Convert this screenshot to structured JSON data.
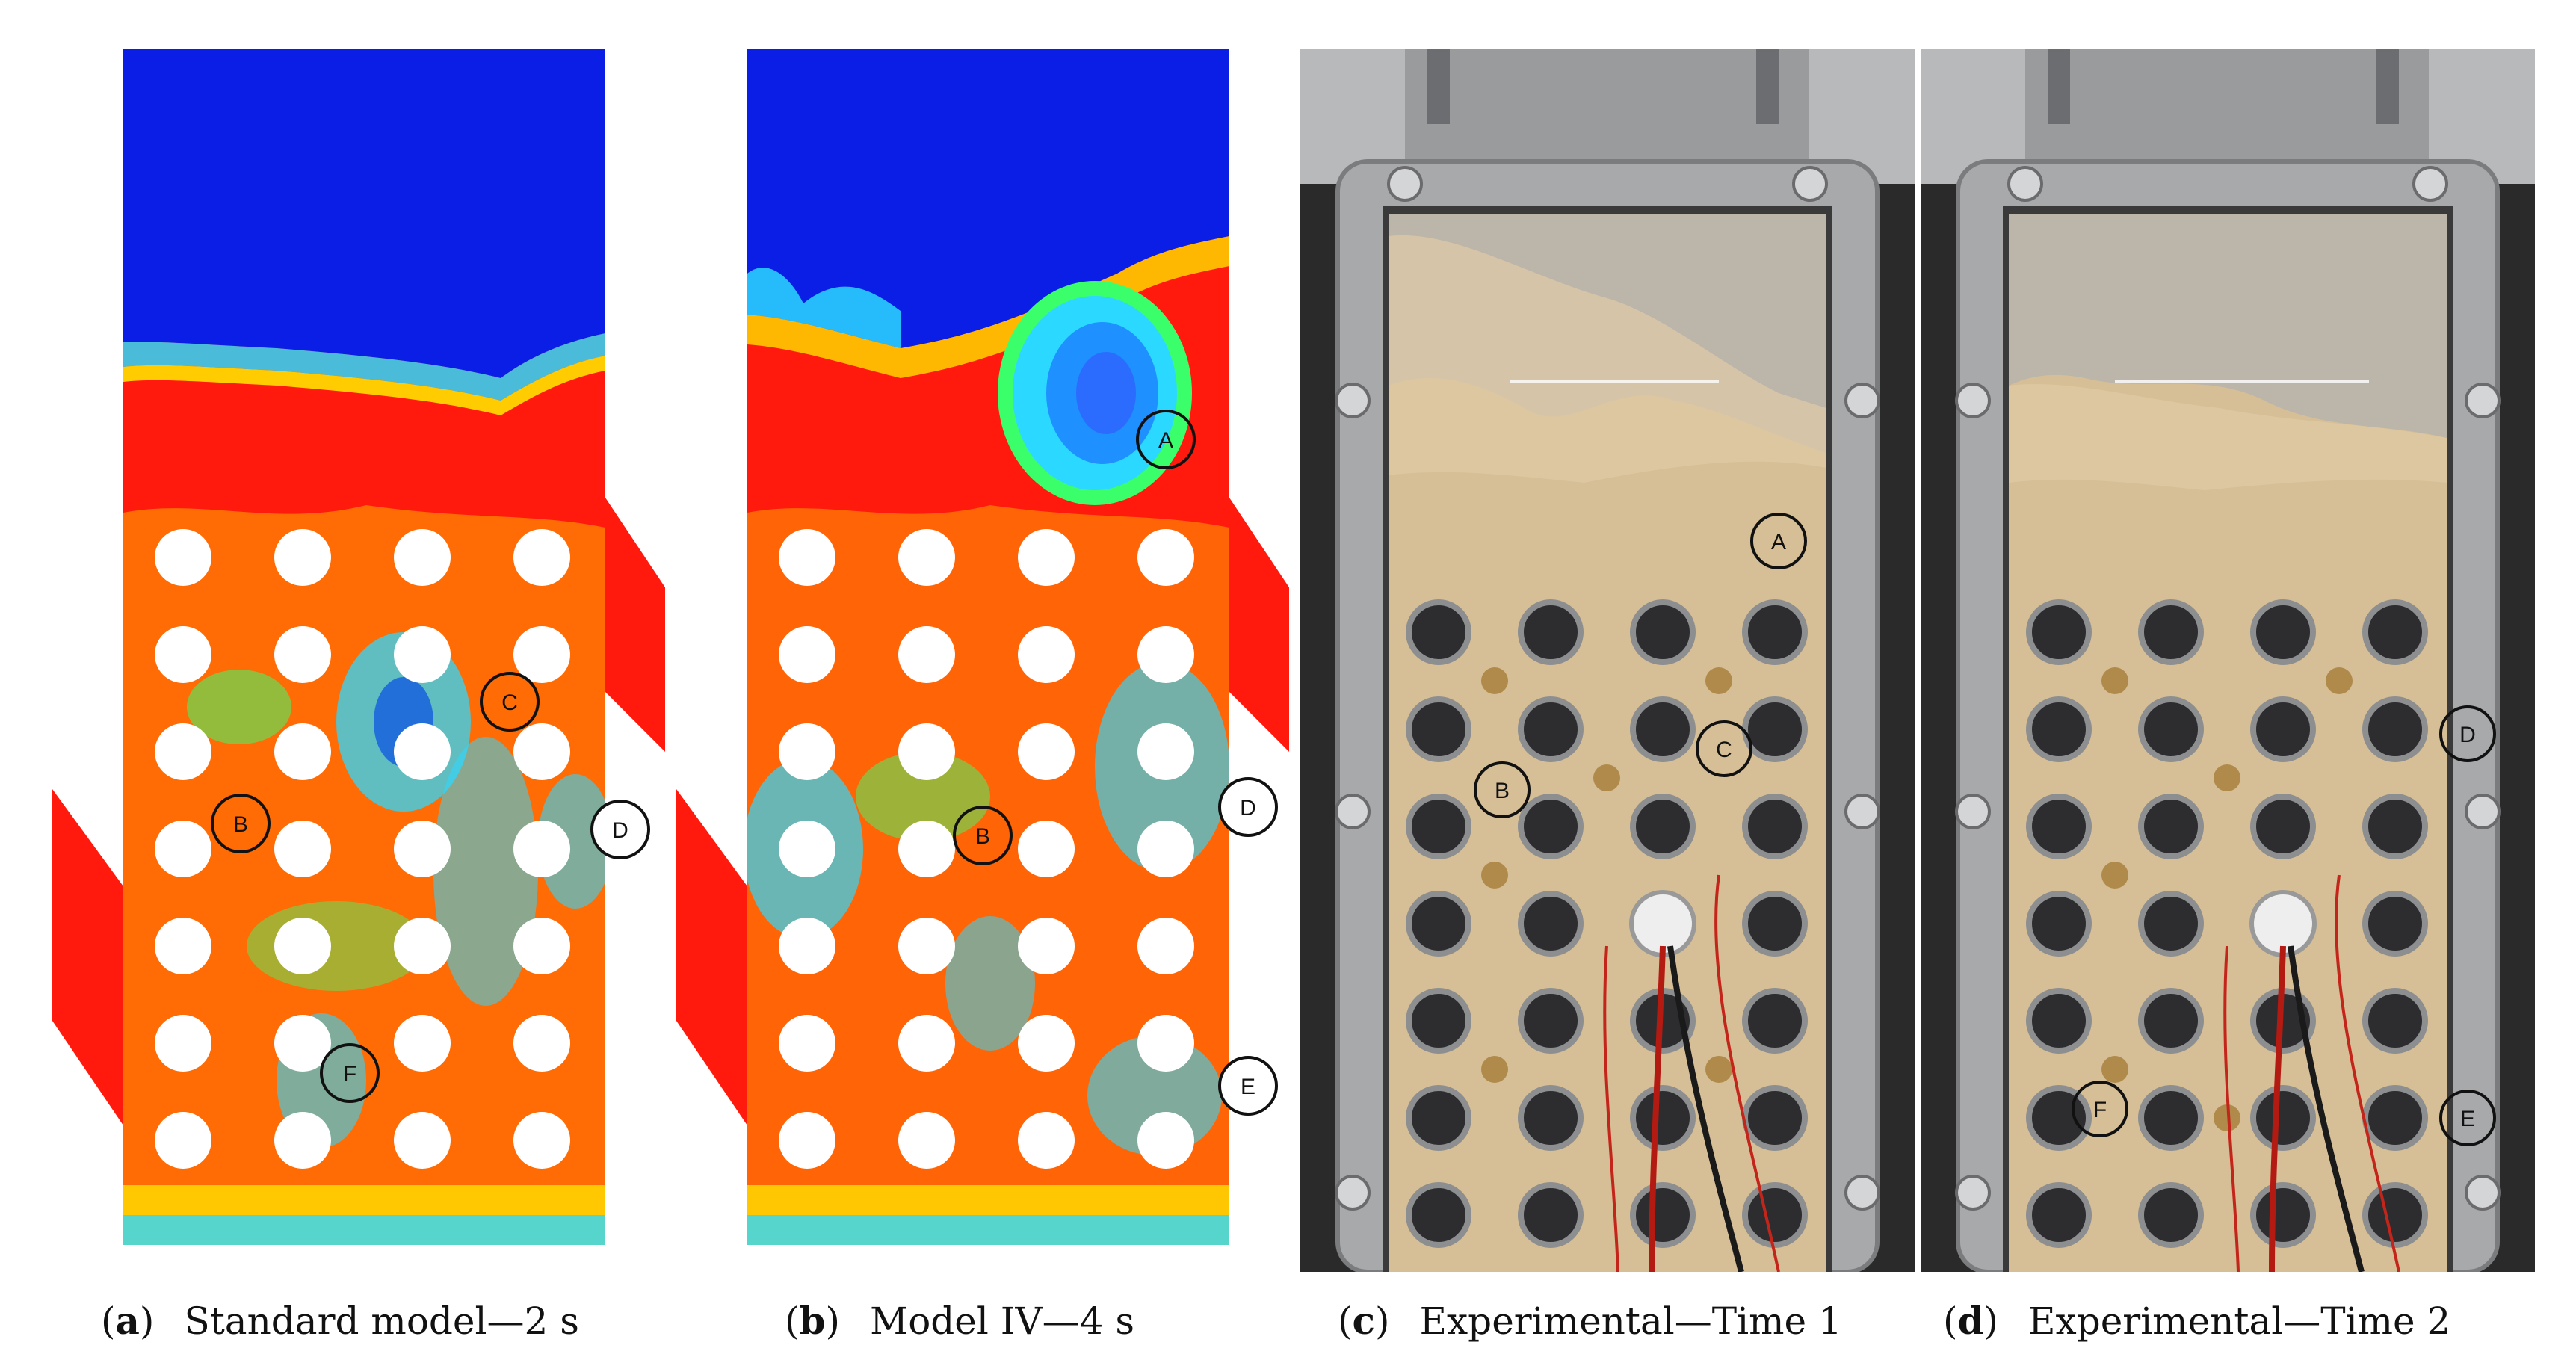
{
  "panels": [
    {
      "id": "a",
      "caption_letter": "a",
      "caption_text": "Standard model—2 s",
      "markers": [
        "B",
        "C",
        "D",
        "F"
      ]
    },
    {
      "id": "b",
      "caption_letter": "b",
      "caption_text": "Model IV—4 s",
      "markers": [
        "A",
        "B",
        "D",
        "E"
      ]
    },
    {
      "id": "c",
      "caption_letter": "c",
      "caption_text": "Experimental—Time 1",
      "markers": [
        "A",
        "B",
        "C"
      ]
    },
    {
      "id": "d",
      "caption_letter": "d",
      "caption_text": "Experimental—Time 2",
      "markers": [
        "D",
        "E",
        "F"
      ]
    }
  ],
  "colors": {
    "simulation_top": "#0a1ee6",
    "simulation_dense": "#ff1a0d",
    "simulation_mid": "#ffe000",
    "simulation_low": "#2bd8ff",
    "sand": "#d9c29a",
    "frame": "#a7a9ab",
    "background_photo": "#2a2a2a",
    "tube": "#2d2d30"
  }
}
